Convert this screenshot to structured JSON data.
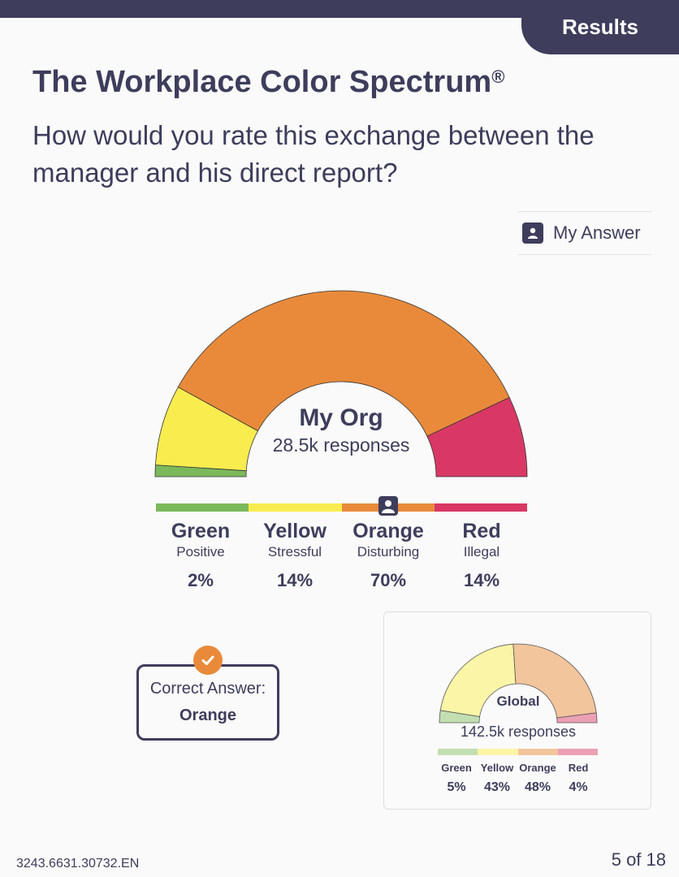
{
  "header": {
    "tab_label": "Results"
  },
  "title": {
    "text": "The Workplace Color Spectrum",
    "mark": "®"
  },
  "question": "How would you rate this exchange between the manager and his direct report?",
  "legend": {
    "my_answer_label": "My Answer",
    "my_answer_icon": "person-icon"
  },
  "colors": {
    "green": "#7cb95b",
    "yellow": "#f9ec4f",
    "orange": "#e98a3b",
    "red": "#d93864",
    "navy": "#3e3d5c"
  },
  "my_org": {
    "title": "My Org",
    "responses": "28.5k responses",
    "categories": [
      {
        "name": "Green",
        "desc": "Positive",
        "pct_label": "2%"
      },
      {
        "name": "Yellow",
        "desc": "Stressful",
        "pct_label": "14%"
      },
      {
        "name": "Orange",
        "desc": "Disturbing",
        "pct_label": "70%"
      },
      {
        "name": "Red",
        "desc": "Illegal",
        "pct_label": "14%"
      }
    ],
    "my_answer_category": "Orange"
  },
  "correct_answer": {
    "label": "Correct Answer:",
    "value": "Orange"
  },
  "global": {
    "title": "Global",
    "responses": "142.5k responses",
    "categories": [
      {
        "name": "Green",
        "pct_label": "5%"
      },
      {
        "name": "Yellow",
        "pct_label": "43%"
      },
      {
        "name": "Orange",
        "pct_label": "48%"
      },
      {
        "name": "Red",
        "pct_label": "4%"
      }
    ]
  },
  "chart_data": [
    {
      "type": "pie",
      "title": "My Org",
      "categories": [
        "Green",
        "Yellow",
        "Orange",
        "Red"
      ],
      "values": [
        2,
        14,
        70,
        14
      ]
    },
    {
      "type": "pie",
      "title": "Global",
      "categories": [
        "Green",
        "Yellow",
        "Orange",
        "Red"
      ],
      "values": [
        5,
        43,
        48,
        4
      ]
    }
  ],
  "footer": {
    "code": "3243.6631.30732.EN",
    "page": "5 of 18"
  }
}
